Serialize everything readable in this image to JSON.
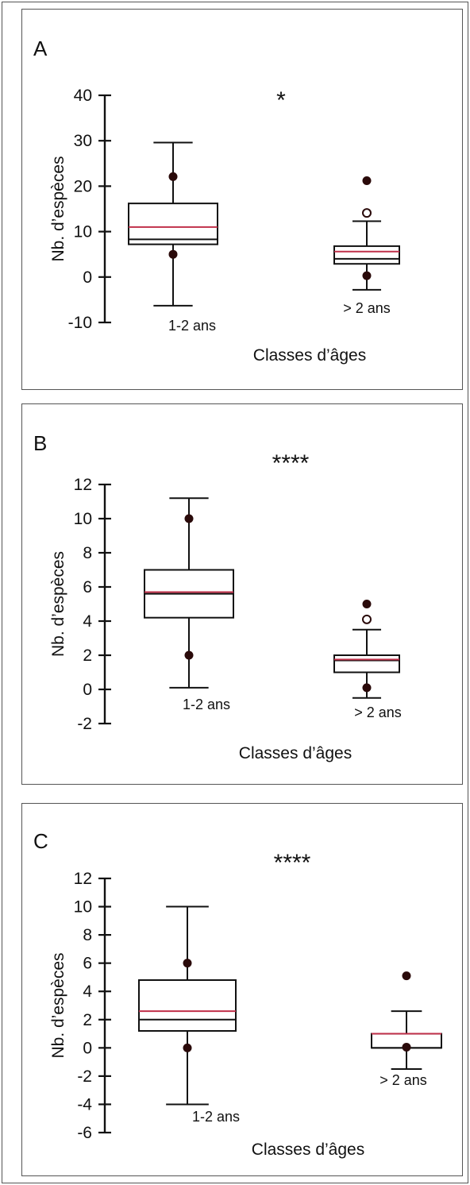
{
  "chart_data": [
    {
      "type": "box",
      "panel_label": "A",
      "significance": "*",
      "ylabel": "Nb. d’espèces",
      "xlabel": "Classes d’âges",
      "ylim": [
        -10,
        40
      ],
      "yticks": [
        40,
        30,
        20,
        10,
        0,
        -10
      ],
      "groups": [
        {
          "name": "1-2 ans",
          "whisker_low": -6.3,
          "q1": 7.2,
          "median": 8.3,
          "mean": 11.0,
          "q3": 16.2,
          "whisker_high": 29.6,
          "points_filled": [
            22.1,
            5.0
          ],
          "points_open": []
        },
        {
          "name": "> 2 ans",
          "whisker_low": -2.8,
          "q1": 2.9,
          "median": 4.0,
          "mean": 5.6,
          "q3": 6.8,
          "whisker_high": 12.3,
          "points_filled": [
            21.2,
            0.3
          ],
          "points_open": [
            14.1
          ]
        }
      ]
    },
    {
      "type": "box",
      "panel_label": "B",
      "significance": "****",
      "ylabel": "Nb. d’espèces",
      "xlabel": "Classes d’âges",
      "ylim": [
        -2,
        12
      ],
      "yticks": [
        12,
        10,
        8,
        6,
        4,
        2,
        0,
        -2
      ],
      "groups": [
        {
          "name": "1-2 ans",
          "whisker_low": 0.1,
          "q1": 4.2,
          "median": 5.6,
          "mean": 5.7,
          "q3": 7.0,
          "whisker_high": 11.2,
          "points_filled": [
            10.0,
            2.0
          ],
          "points_open": []
        },
        {
          "name": "> 2 ans",
          "whisker_low": -0.5,
          "q1": 1.0,
          "median": 1.7,
          "mean": 1.75,
          "q3": 2.0,
          "whisker_high": 3.5,
          "points_filled": [
            5.0,
            0.1
          ],
          "points_open": [
            4.1
          ]
        }
      ]
    },
    {
      "type": "box",
      "panel_label": "C",
      "significance": "****",
      "ylabel": "Nb. d’espèces",
      "xlabel": "Classes d’âges",
      "ylim": [
        -6,
        12
      ],
      "yticks": [
        12,
        10,
        8,
        6,
        4,
        2,
        0,
        -2,
        -4,
        -6
      ],
      "groups": [
        {
          "name": "1-2 ans",
          "whisker_low": -4.0,
          "q1": 1.2,
          "median": 2.0,
          "mean": 2.6,
          "q3": 4.8,
          "whisker_high": 10.0,
          "points_filled": [
            6.0,
            0.0
          ],
          "points_open": []
        },
        {
          "name": "> 2 ans",
          "whisker_low": -1.5,
          "q1": 0.0,
          "median": 0.0,
          "mean": 1.0,
          "q3": 1.0,
          "whisker_high": 2.6,
          "points_filled": [
            5.1,
            0.05
          ],
          "points_open": []
        }
      ]
    }
  ],
  "colors": {
    "axis": "#111111",
    "box_stroke": "#111111",
    "median": "#111111",
    "mean": "#c0304a",
    "point_fill": "#2a0a0a",
    "panel_border": "#555555"
  }
}
